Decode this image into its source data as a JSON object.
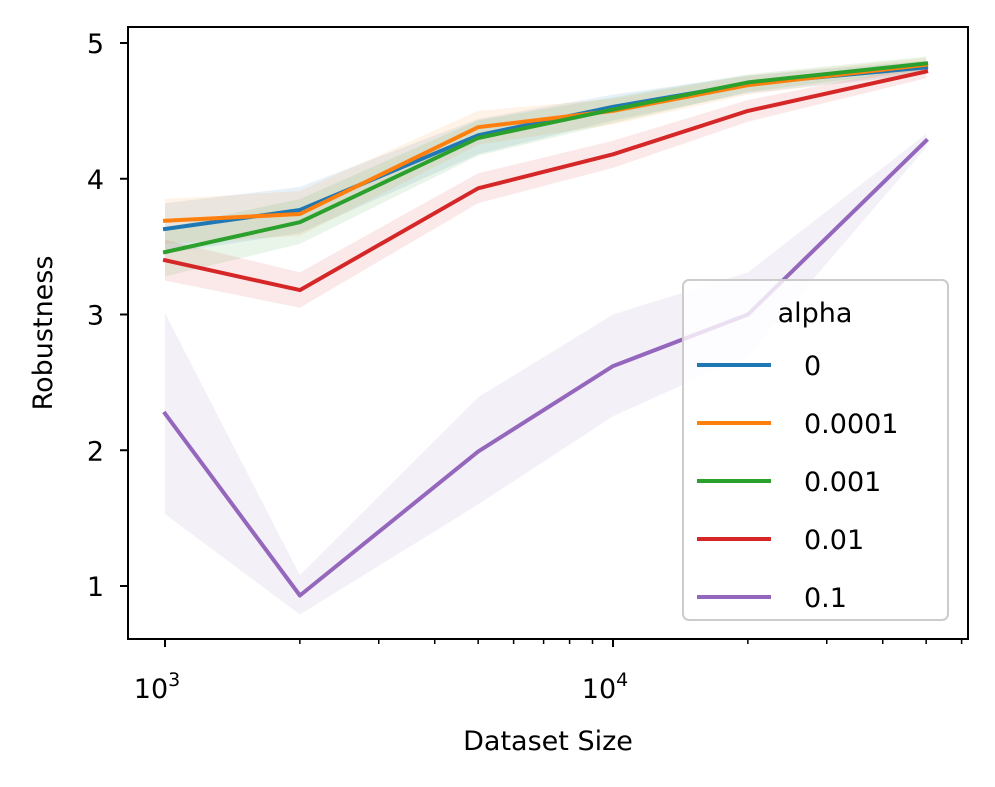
{
  "chart_data": {
    "type": "line",
    "xlabel": "Dataset Size",
    "ylabel": "Robustness",
    "x_scale": "log",
    "x": [
      1000,
      2000,
      5000,
      10000,
      20000,
      50000
    ],
    "x_ticks": [
      {
        "value": 1000,
        "base": "10",
        "exp": "3"
      },
      {
        "value": 10000,
        "base": "10",
        "exp": "4"
      }
    ],
    "y_ticks": [
      "1",
      "2",
      "3",
      "4",
      "5"
    ],
    "legend": {
      "title": "alpha",
      "placement": "lower right"
    },
    "series": [
      {
        "name": "0",
        "color": "#1f77b4",
        "values": [
          3.63,
          3.77,
          4.32,
          4.53,
          4.7,
          4.82
        ],
        "lower": [
          3.45,
          3.6,
          4.18,
          4.43,
          4.63,
          4.77
        ],
        "upper": [
          3.82,
          3.94,
          4.44,
          4.62,
          4.76,
          4.87
        ]
      },
      {
        "name": "0.0001",
        "color": "#ff7f0e",
        "values": [
          3.69,
          3.74,
          4.38,
          4.5,
          4.69,
          4.84
        ],
        "lower": [
          3.52,
          3.58,
          4.25,
          4.4,
          4.62,
          4.79
        ],
        "upper": [
          3.85,
          3.91,
          4.5,
          4.59,
          4.76,
          4.89
        ]
      },
      {
        "name": "0.001",
        "color": "#2ca02c",
        "values": [
          3.46,
          3.68,
          4.3,
          4.51,
          4.71,
          4.85
        ],
        "lower": [
          3.28,
          3.52,
          4.17,
          4.41,
          4.64,
          4.8
        ],
        "upper": [
          3.64,
          3.85,
          4.43,
          4.6,
          4.77,
          4.9
        ]
      },
      {
        "name": "0.01",
        "color": "#d62728",
        "values": [
          3.4,
          3.18,
          3.93,
          4.18,
          4.5,
          4.79
        ],
        "lower": [
          3.25,
          3.05,
          3.82,
          4.08,
          4.42,
          4.74
        ],
        "upper": [
          3.55,
          3.31,
          4.04,
          4.28,
          4.58,
          4.84
        ]
      },
      {
        "name": "0.1",
        "color": "#9467bd",
        "values": [
          2.27,
          0.93,
          1.99,
          2.62,
          3.0,
          4.28
        ],
        "lower": [
          1.53,
          0.79,
          1.6,
          2.25,
          2.7,
          4.23
        ],
        "upper": [
          3.01,
          1.08,
          2.39,
          3.0,
          3.31,
          4.33
        ]
      }
    ]
  }
}
